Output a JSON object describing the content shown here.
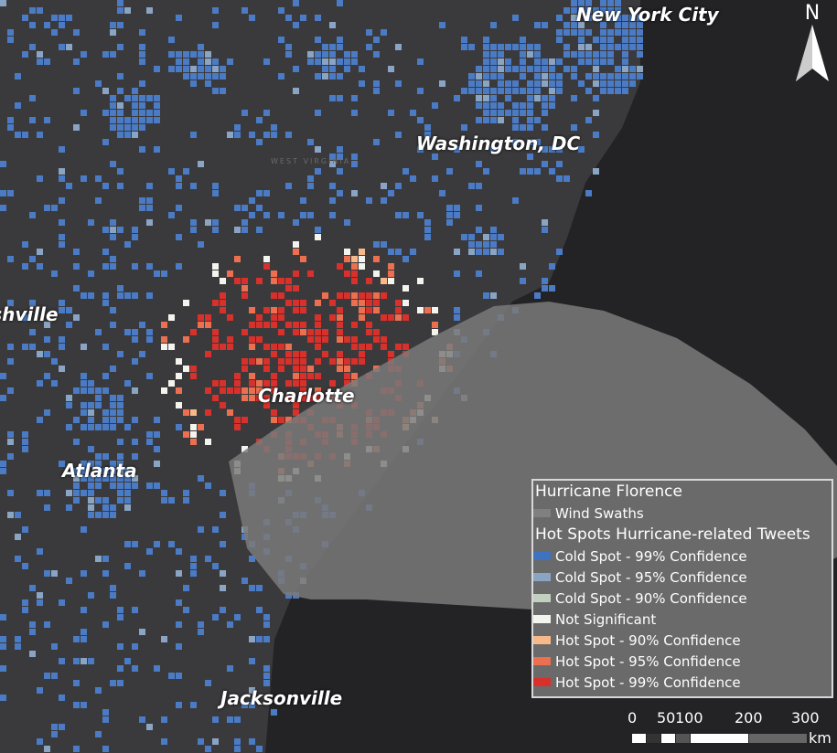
{
  "map": {
    "cities": [
      "New York City",
      "Washington, DC",
      "Charlotte",
      "Atlanta",
      "Jacksonville",
      "Nashville"
    ],
    "state_labels": [
      "WEST VIRGINIA"
    ],
    "north_label": "N",
    "colors": {
      "land": "#3a3a3c",
      "ocean": "#232326",
      "wind_swath": "#7a7a7a",
      "cold99": "#4a7bc4",
      "cold95": "#8aa4c4",
      "cold90": "#c2d0c2",
      "not_sig": "#f4f4ee",
      "hot90": "#f7b88a",
      "hot95": "#ec7050",
      "hot99": "#d8302a"
    }
  },
  "legend": {
    "title": "Hurricane Florence",
    "wind": "Wind Swaths",
    "subtitle": "Hot Spots Hurricane-related Tweets",
    "items": [
      {
        "label": "Cold Spot - 99% Confidence",
        "color": "#3f72bf"
      },
      {
        "label": "Cold Spot - 95% Confidence",
        "color": "#8aa4c4"
      },
      {
        "label": "Cold Spot - 90% Confidence",
        "color": "#c2d0c2"
      },
      {
        "label": "Not Significant",
        "color": "#f4f4ee"
      },
      {
        "label": "Hot Spot - 90% Confidence",
        "color": "#f7b88a"
      },
      {
        "label": "Hot Spot - 95% Confidence",
        "color": "#ec7050"
      },
      {
        "label": "Hot Spot - 99% Confidence",
        "color": "#d8302a"
      }
    ]
  },
  "scale": {
    "ticks": [
      "0",
      "50",
      "100",
      "200",
      "300"
    ],
    "unit": "km"
  }
}
